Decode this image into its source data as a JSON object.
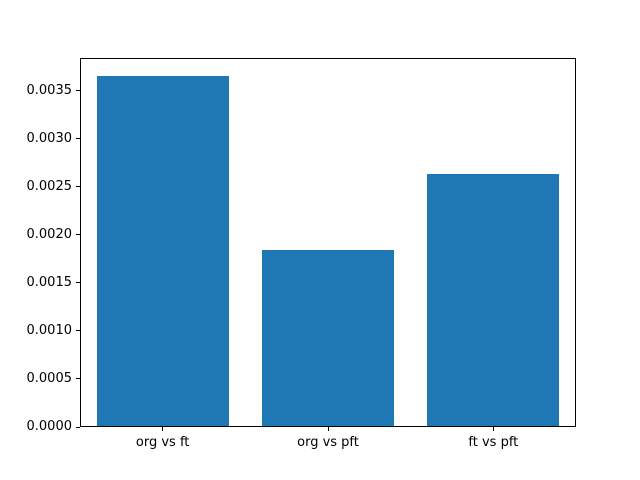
{
  "chart_data": {
    "type": "bar",
    "categories": [
      "org vs ft",
      "org vs pft",
      "ft vs pft"
    ],
    "values": [
      0.00366,
      0.00184,
      0.00264
    ],
    "title": "",
    "xlabel": "",
    "ylabel": "",
    "ylim": [
      0,
      0.003843
    ],
    "xlim": [
      -0.5,
      2.5
    ],
    "bar_width": 0.8,
    "ytick_values": [
      0.0,
      0.0005,
      0.001,
      0.0015,
      0.002,
      0.0025,
      0.003,
      0.0035
    ],
    "ytick_labels": [
      "0.0000",
      "0.0005",
      "0.0010",
      "0.0015",
      "0.0020",
      "0.0025",
      "0.0030",
      "0.0035"
    ],
    "bar_color": "#1f77b4",
    "grid": false,
    "legend_position": null
  }
}
